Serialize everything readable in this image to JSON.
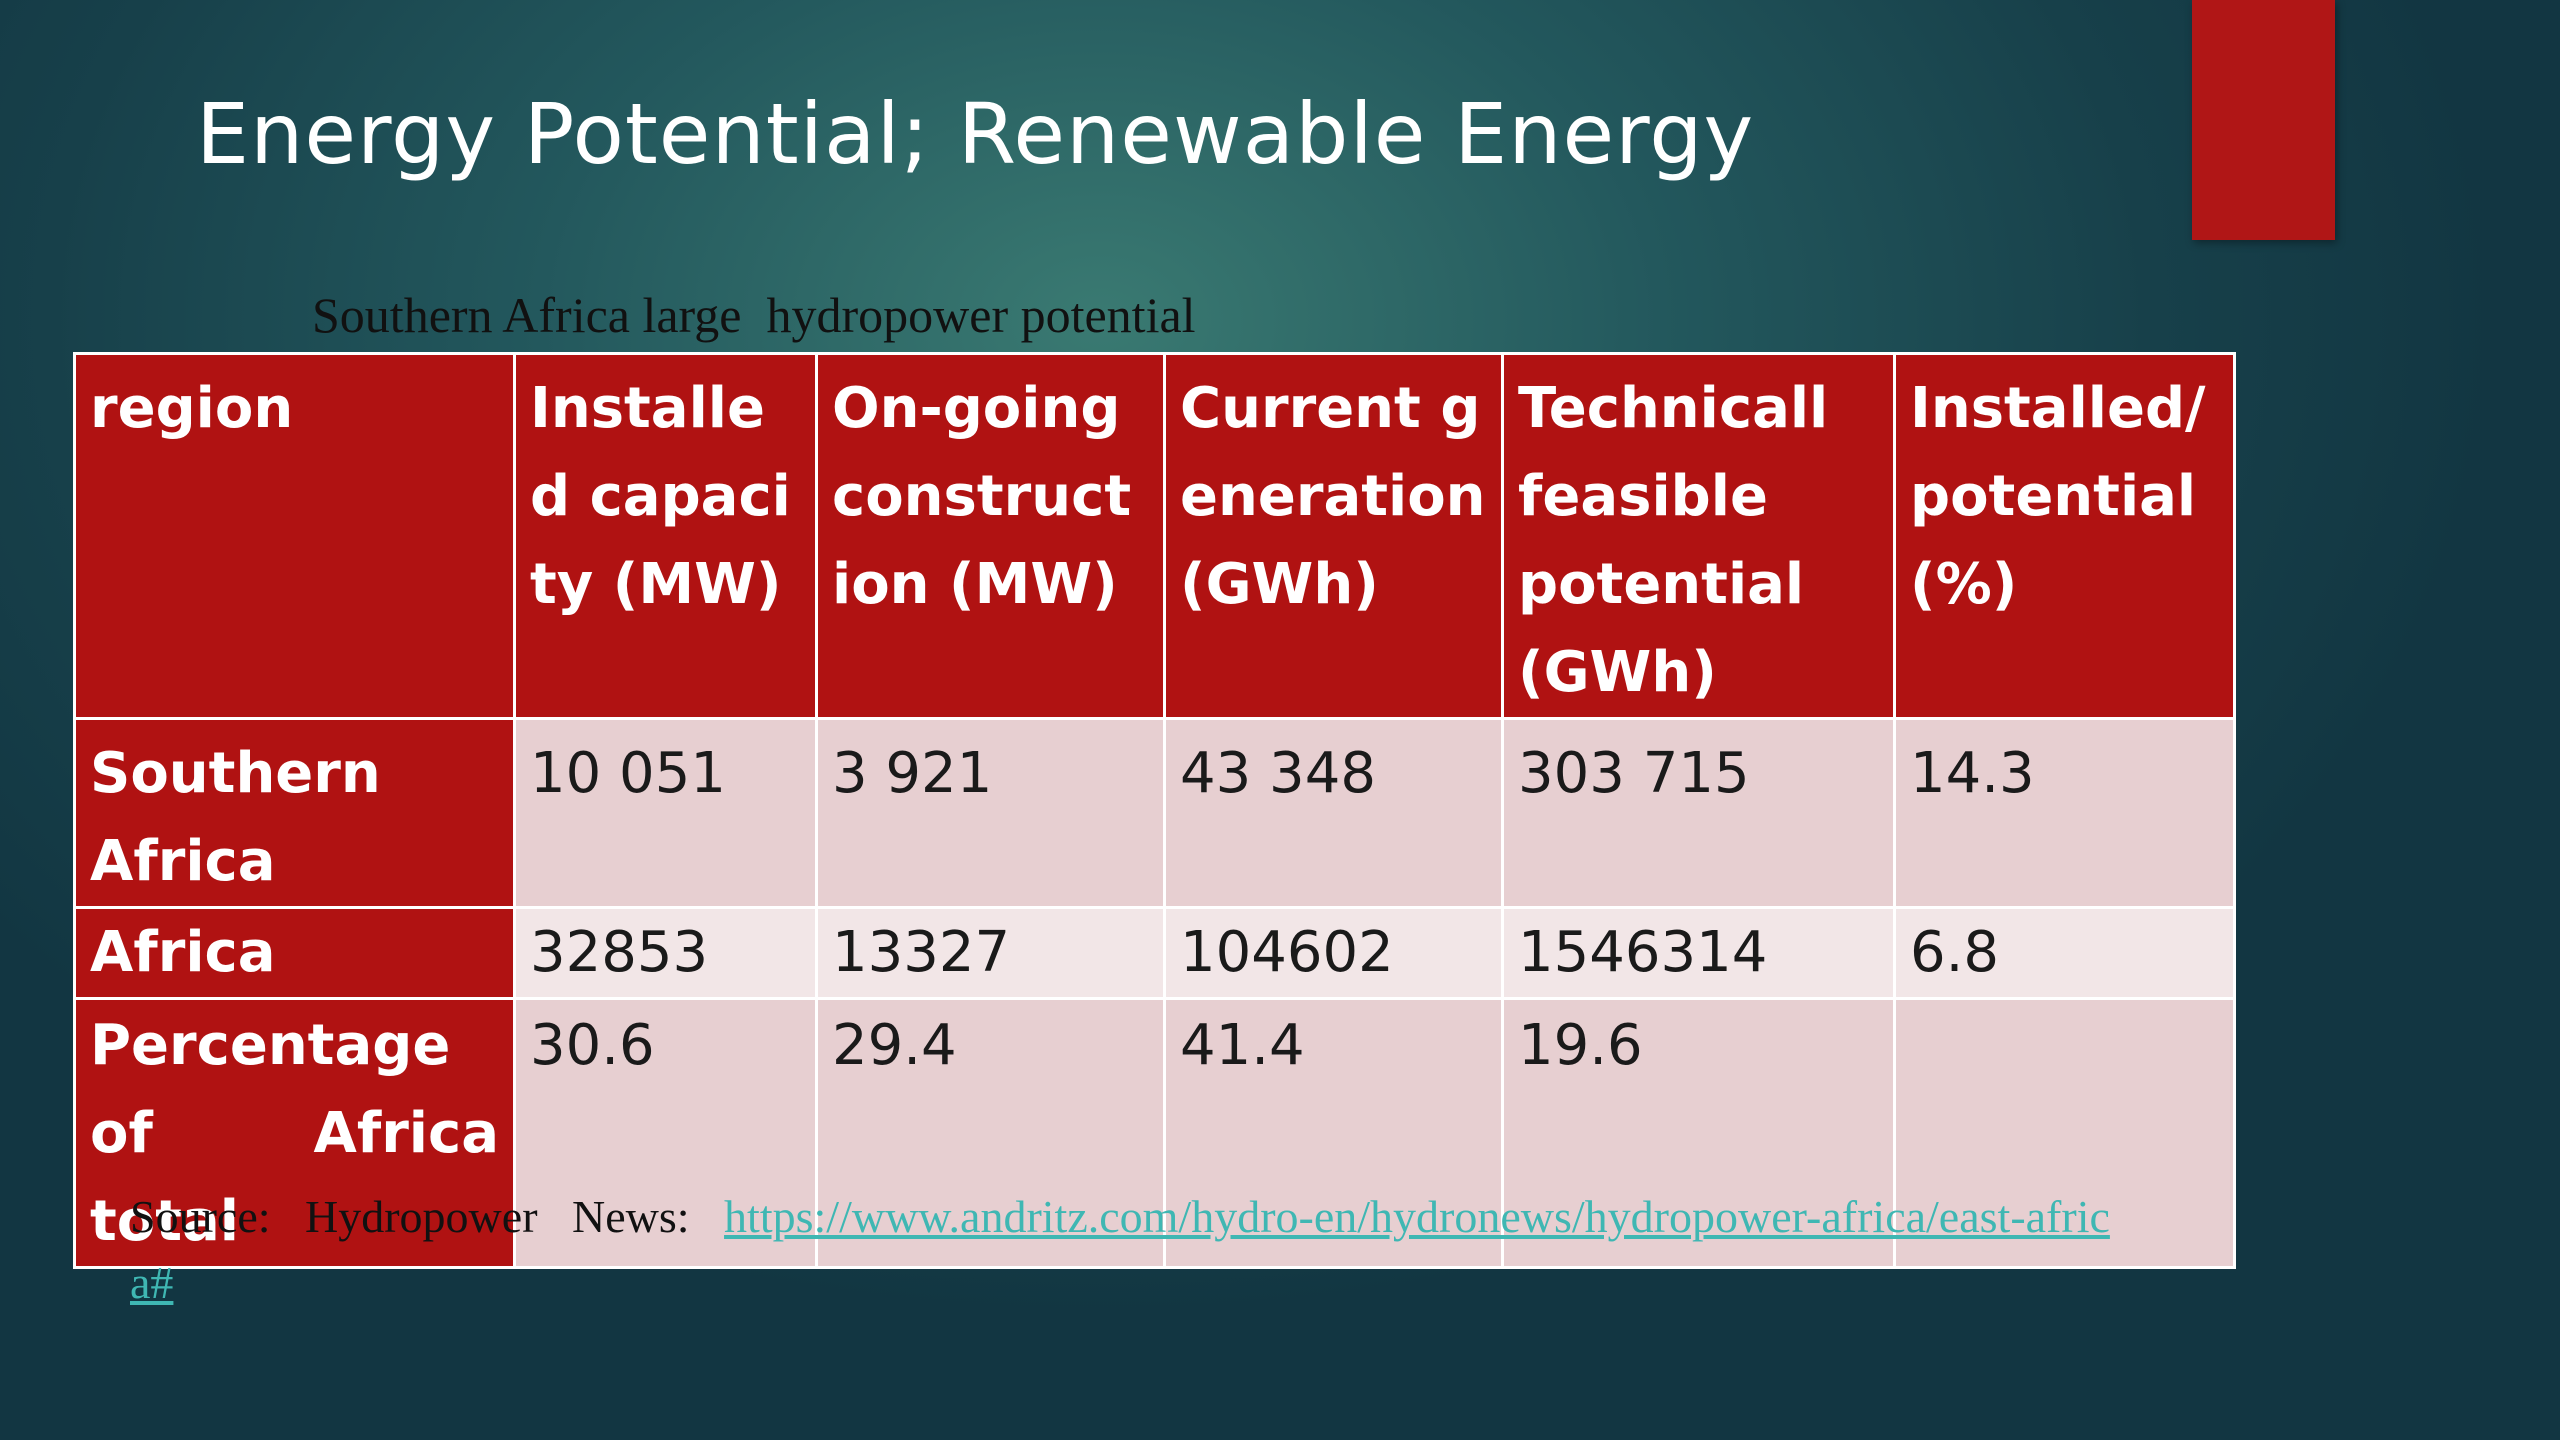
{
  "slide": {
    "title": "Energy Potential; Renewable Energy",
    "subtitle": "Southern Africa large  hydropower potential",
    "accent_color": "#b01616"
  },
  "table": {
    "headers": [
      "region",
      "Installed capacity (MW)",
      "On-going construction (MW)",
      "Current generation (GWh)",
      "Technicall feasible potential (GWh)",
      "Installed/ potential (%)"
    ],
    "rows": [
      {
        "region": "Southern Africa",
        "installed": "10 051",
        "ongoing": "3 921",
        "generation": "43 348",
        "potential": "303 715",
        "ratio": "14.3"
      },
      {
        "region": "Africa",
        "installed": "32853",
        "ongoing": "13327",
        "generation": "104602",
        "potential": "1546314",
        "ratio": "6.8"
      },
      {
        "region": "Percentage of Africa total",
        "installed": "30.6",
        "ongoing": "29.4",
        "generation": "41.4",
        "potential": "19.6",
        "ratio": ""
      }
    ]
  },
  "source": {
    "label": "Source:   Hydropower   News:   ",
    "link_text": "https://www.andritz.com/hydro-en/hydronews/hydropower-africa/east-africa#"
  }
}
